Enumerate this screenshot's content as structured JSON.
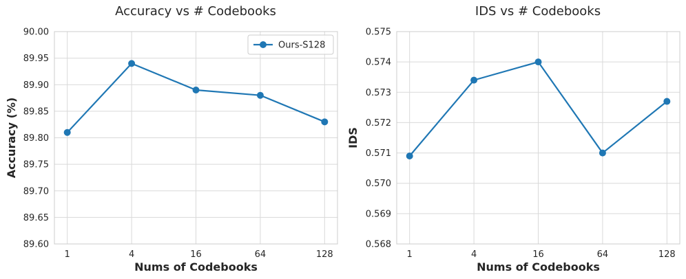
{
  "chart_data": [
    {
      "type": "line",
      "title": "Accuracy vs # Codebooks",
      "xlabel": "Nums of Codebooks",
      "ylabel": "Accuracy (%)",
      "categories": [
        "1",
        "4",
        "16",
        "64",
        "128"
      ],
      "ylim": [
        89.6,
        90.0
      ],
      "yticks": [
        "89.60",
        "89.65",
        "89.70",
        "89.75",
        "89.80",
        "89.85",
        "89.90",
        "89.95",
        "90.00"
      ],
      "grid": true,
      "legend": "top-right",
      "series": [
        {
          "name": "Ours-S128",
          "color": "#1f77b4",
          "values": [
            89.81,
            89.94,
            89.89,
            89.88,
            89.83
          ]
        }
      ]
    },
    {
      "type": "line",
      "title": "IDS vs # Codebooks",
      "xlabel": "Nums of Codebooks",
      "ylabel": "IDS",
      "categories": [
        "1",
        "4",
        "16",
        "64",
        "128"
      ],
      "ylim": [
        0.568,
        0.575
      ],
      "yticks": [
        "0.568",
        "0.569",
        "0.570",
        "0.571",
        "0.572",
        "0.573",
        "0.574",
        "0.575"
      ],
      "grid": true,
      "series": [
        {
          "color": "#1f77b4",
          "values": [
            0.5709,
            0.5734,
            0.574,
            0.571,
            0.5727
          ]
        }
      ]
    }
  ]
}
